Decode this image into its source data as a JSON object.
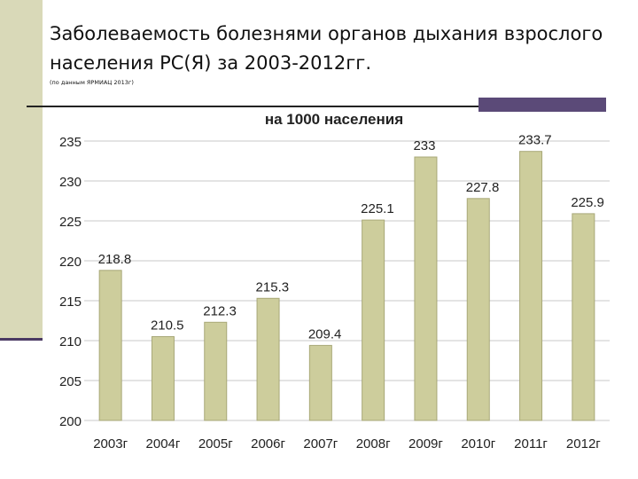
{
  "header": {
    "title": "Заболеваемость болезнями органов дыхания взрослого населения РС(Я) за 2003-2012гг.",
    "source_note": "(по данным ЯРМИАЦ 2013г)"
  },
  "colors": {
    "bar_fill": "#cdcd9c",
    "bar_stroke": "#a8a878",
    "side_bar": "#d9d9b8",
    "accent": "#5b4a78",
    "grid": "#c8c8c8"
  },
  "chart_data": {
    "type": "bar",
    "title": "на 1000 населения",
    "categories": [
      "2003г",
      "2004г",
      "2005г",
      "2006г",
      "2007г",
      "2008г",
      "2009г",
      "2010г",
      "2011г",
      "2012г"
    ],
    "values": [
      218.8,
      210.5,
      212.3,
      215.3,
      209.4,
      225.1,
      233,
      227.8,
      233.7,
      225.9
    ],
    "data_labels": [
      "218.8",
      "210.5",
      "212.3",
      "215.3",
      "209.4",
      "225.1",
      "233",
      "227.8",
      "233.7",
      "225.9"
    ],
    "yticks": [
      200,
      205,
      210,
      215,
      220,
      225,
      230,
      235
    ],
    "ylim": [
      200,
      235
    ],
    "grid": true,
    "legend": false
  }
}
